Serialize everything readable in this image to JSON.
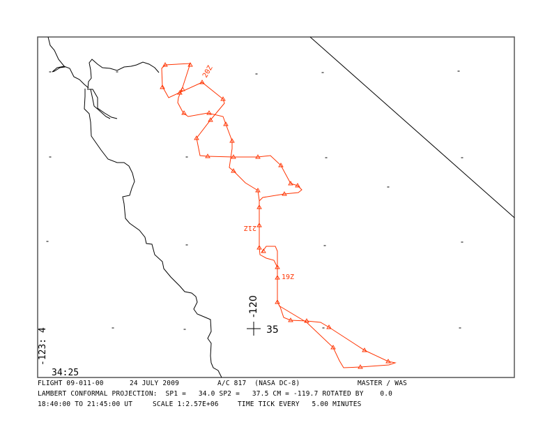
{
  "map": {
    "colors": {
      "track": "#ff3300",
      "coast": "#000000",
      "frame": "#555555"
    },
    "corner_lon_label": "-123: 4",
    "corner_lat_label": "34:25",
    "reference_lon_label": "-120",
    "reference_lat_label": "35",
    "time_labels": [
      "20Z",
      "21Z",
      "19Z"
    ]
  },
  "footer": {
    "line1": {
      "flight": "FLIGHT 09-011-00",
      "date": "24 JULY 2009",
      "aircraft": "A/C 817  (NASA DC-8)",
      "instrument": "MASTER / WAS"
    },
    "line2": {
      "projection": "LAMBERT CONFORMAL PROJECTION:  SP1 =   34.0 SP2 =   37.5 CM = -119.7 ROTATED BY    0.0"
    },
    "line3": {
      "time_range": "18:40:00 TO 21:45:00 UT",
      "scale": "SCALE 1:2.57E+06",
      "tick": "TIME TICK EVERY   5.00 MINUTES"
    }
  }
}
